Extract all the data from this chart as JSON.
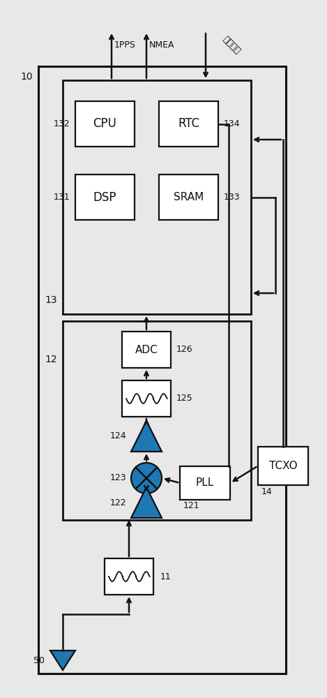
{
  "bg_color": "#e8e8e8",
  "line_color": "#111111",
  "box_fill": "#ffffff",
  "fig_width": 4.69,
  "fig_height": 10.0,
  "labels": {
    "pps": "1PPS",
    "nmea": "NMEA",
    "control": "制御命令",
    "cpu": "CPU",
    "rtc": "RTC",
    "dsp": "DSP",
    "sram": "SRAM",
    "adc": "ADC",
    "pll": "PLL",
    "tcxo": "TCXO",
    "n10": "10",
    "n11": "11",
    "n12": "12",
    "n13": "13",
    "n14": "14",
    "n50": "50",
    "n121": "121",
    "n122": "122",
    "n123": "123",
    "n124": "124",
    "n125": "125",
    "n126": "126",
    "n131": "131",
    "n132": "132",
    "n133": "133",
    "n134": "134"
  }
}
